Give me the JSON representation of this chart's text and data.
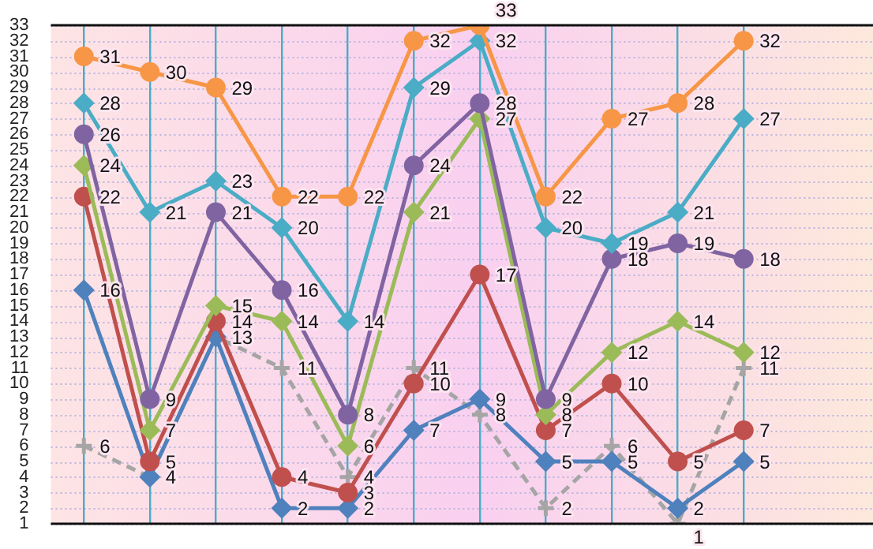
{
  "chart_data": {
    "type": "line",
    "categories": [
      null,
      null,
      null,
      null,
      null,
      null,
      null,
      null,
      null,
      null,
      null
    ],
    "series": [
      {
        "color": "#f79646",
        "marker": "circle",
        "values": [
          31,
          30,
          29,
          22,
          22,
          32,
          33,
          22,
          27,
          28,
          32
        ]
      },
      {
        "color": "#4bacc6",
        "marker": "diamond",
        "values": [
          28,
          21,
          23,
          20,
          14,
          29,
          32,
          20,
          19,
          21,
          27
        ]
      },
      {
        "color": "#8064a2",
        "marker": "circle",
        "values": [
          26,
          9,
          21,
          16,
          8,
          24,
          28,
          9,
          18,
          19,
          18
        ]
      },
      {
        "color": "#9bbb59",
        "marker": "diamond",
        "values": [
          24,
          7,
          15,
          14,
          6,
          21,
          27,
          8,
          12,
          14,
          12
        ]
      },
      {
        "color": "#c0504d",
        "marker": "circle",
        "values": [
          22,
          5,
          14,
          4,
          3,
          10,
          17,
          7,
          10,
          5,
          7
        ]
      },
      {
        "color": "#4f81bd",
        "marker": "diamond",
        "values": [
          16,
          4,
          13,
          2,
          2,
          7,
          9,
          5,
          5,
          2,
          5
        ]
      },
      {
        "color": "#a5a5a5",
        "marker": "cross",
        "line_style": "dashed",
        "values": [
          6,
          4,
          13,
          11,
          4,
          11,
          8,
          2,
          6,
          1,
          11
        ],
        "value_labels": [
          "6",
          "4",
          null,
          "11",
          "4",
          "11",
          "8",
          "2",
          "6",
          "1",
          "11"
        ]
      }
    ],
    "ylim": [
      1,
      33
    ],
    "yticks": [
      1,
      2,
      3,
      4,
      5,
      6,
      7,
      8,
      9,
      10,
      11,
      12,
      13,
      14,
      15,
      16,
      17,
      18,
      19,
      20,
      21,
      22,
      23,
      24,
      25,
      26,
      27,
      28,
      29,
      30,
      31,
      32,
      33
    ],
    "grid": true,
    "legend": false,
    "tick_labels": "y",
    "data_labels": true
  }
}
